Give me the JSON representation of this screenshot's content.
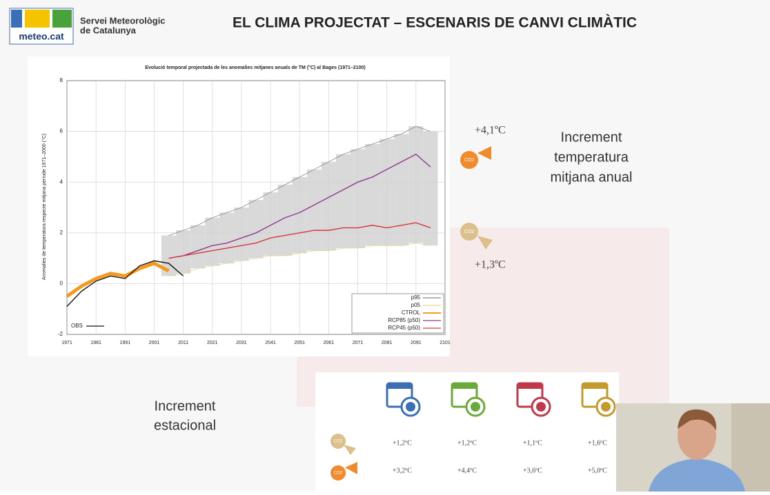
{
  "header": {
    "logo_text": "meteo.cat",
    "org_line1": "Servei Meteorològic",
    "org_line2": "de Catalunya",
    "title": "EL CLIMA PROJECTAT – ESCENARIS DE CANVI CLIMÀTIC"
  },
  "chart_data": {
    "type": "line",
    "title": "Evolució temporal projectada de les anomalies mitjanes anuals de TM (°C) al Bages (1971–2100)",
    "y_label": "Anomalies de temperatura respecte mitjana període 1971–2000 (°C)",
    "x": [
      1971,
      1976,
      1981,
      1986,
      1991,
      1996,
      2001,
      2006,
      2011,
      2016,
      2021,
      2026,
      2031,
      2036,
      2041,
      2046,
      2051,
      2056,
      2061,
      2066,
      2071,
      2076,
      2081,
      2086,
      2091,
      2096
    ],
    "xlim": [
      1971,
      2101
    ],
    "ylim": [
      -2,
      8
    ],
    "xticks": [
      1971,
      1981,
      1991,
      2001,
      2011,
      2021,
      2031,
      2041,
      2051,
      2061,
      2071,
      2081,
      2091,
      2101
    ],
    "yticks": [
      -2,
      0,
      2,
      4,
      6,
      8
    ],
    "grid": true,
    "legend": "lower right",
    "series": [
      {
        "name": "p95",
        "color": "#888888",
        "values": [
          null,
          null,
          null,
          null,
          null,
          null,
          null,
          1.9,
          2.1,
          2.3,
          2.6,
          2.8,
          3.0,
          3.3,
          3.6,
          3.9,
          4.2,
          4.5,
          4.8,
          5.1,
          5.3,
          5.5,
          5.7,
          5.9,
          6.2,
          6.0
        ]
      },
      {
        "name": "p05",
        "color": "#e6d58a",
        "values": [
          null,
          null,
          null,
          null,
          null,
          null,
          null,
          0.3,
          0.4,
          0.6,
          0.7,
          0.8,
          0.9,
          1.0,
          1.1,
          1.1,
          1.2,
          1.3,
          1.3,
          1.4,
          1.4,
          1.5,
          1.5,
          1.5,
          1.6,
          1.5
        ]
      },
      {
        "name": "CTROL",
        "color": "#f59a1e",
        "values": [
          -0.5,
          -0.1,
          0.2,
          0.4,
          0.3,
          0.6,
          0.8,
          0.5,
          null,
          null,
          null,
          null,
          null,
          null,
          null,
          null,
          null,
          null,
          null,
          null,
          null,
          null,
          null,
          null,
          null,
          null
        ]
      },
      {
        "name": "RCP85 (p50)",
        "color": "#8b3a8f",
        "values": [
          null,
          null,
          null,
          null,
          null,
          null,
          null,
          1.0,
          1.1,
          1.3,
          1.5,
          1.6,
          1.8,
          2.0,
          2.3,
          2.6,
          2.8,
          3.1,
          3.4,
          3.7,
          4.0,
          4.2,
          4.5,
          4.8,
          5.1,
          4.6
        ]
      },
      {
        "name": "RCP45 (p50)",
        "color": "#d9343c",
        "values": [
          null,
          null,
          null,
          null,
          null,
          null,
          null,
          1.0,
          1.1,
          1.2,
          1.3,
          1.4,
          1.5,
          1.6,
          1.8,
          1.9,
          2.0,
          2.1,
          2.1,
          2.2,
          2.2,
          2.3,
          2.2,
          2.3,
          2.4,
          2.2
        ]
      },
      {
        "name": "OBS",
        "color": "#111111",
        "values": [
          -0.9,
          -0.3,
          0.1,
          0.3,
          0.2,
          0.7,
          0.9,
          0.8,
          0.3,
          null,
          null,
          null,
          null,
          null,
          null,
          null,
          null,
          null,
          null,
          null,
          null,
          null,
          null,
          null,
          null,
          null
        ]
      }
    ]
  },
  "annotations": {
    "rcp85_increment": "+4,1ºC",
    "rcp45_increment": "+1,3ºC",
    "icon_text": "CO2",
    "annual_label": [
      "Increment",
      "temperatura",
      "mitjana anual"
    ]
  },
  "seasonal": {
    "label": [
      "Increment",
      "estacional"
    ],
    "rows": [
      [
        "+1,2ºC",
        "+1,2ºC",
        "+1,1ºC",
        "+1,6ºC"
      ],
      [
        "+3,2ºC",
        "+4,4ºC",
        "+3,6ºC",
        "+5,0ºC"
      ]
    ]
  }
}
